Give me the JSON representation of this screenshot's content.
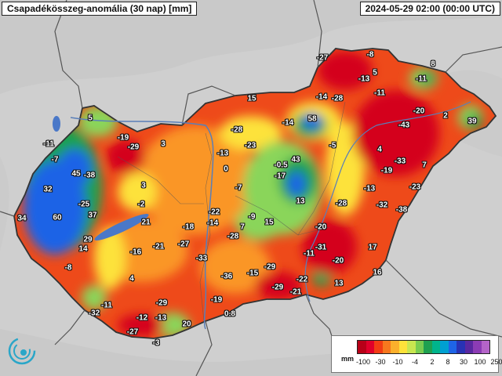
{
  "header": {
    "title": "Csapadékösszeg-anomália (30 nap) [mm]",
    "timestamp": "2024-05-29 02:00 (00:00 UTC)"
  },
  "legend": {
    "unit": "mm",
    "ticks": [
      "-100",
      "-30",
      "-10",
      "-4",
      "2",
      "8",
      "30",
      "100",
      "250"
    ],
    "colors": [
      "#b80018",
      "#e0002a",
      "#f23c14",
      "#f7781e",
      "#fbb02c",
      "#fde23a",
      "#c8e650",
      "#78cc50",
      "#1ea050",
      "#00b48c",
      "#00a0d2",
      "#1e64e6",
      "#2832b4",
      "#5a28a0",
      "#8c3cb4",
      "#b464c8"
    ]
  },
  "map_colors": {
    "background": "#cfcfcf",
    "border": "#555555",
    "strong_deficit": "#d4001e",
    "deficit": "#ee4a1a",
    "moderate_deficit": "#fa9628",
    "slight_deficit": "#fde23a",
    "slight_surplus": "#8ad55a",
    "surplus": "#1ea050",
    "strong_surplus": "#1e64e6"
  },
  "values": [
    "-27",
    "-8",
    "5",
    "-13",
    "8",
    "-11",
    "-14",
    "-28",
    "-11",
    "15",
    "-20",
    "2",
    "39",
    "-14",
    "58",
    "-43",
    "5",
    "-19",
    "-29",
    "3",
    "-28",
    "-23",
    "-11",
    "-7",
    "-13",
    "0",
    "-5",
    "4",
    "-0.5",
    "43",
    "-19",
    "-33",
    "7",
    "-38",
    "45",
    "32",
    "-25",
    "3",
    "-2",
    "-17",
    "13",
    "-7",
    "-13",
    "-23",
    "-28",
    "-32",
    "-38",
    "34",
    "60",
    "37",
    "21",
    "-22",
    "-9",
    "15",
    "-18",
    "-14",
    "7",
    "29",
    "14",
    "-16",
    "-21",
    "-27",
    "-28",
    "-20",
    "-31",
    "-11",
    "17",
    "-8",
    "4",
    "-33",
    "-36",
    "-15",
    "-29",
    "-20",
    "16",
    "-11",
    "-22",
    "-29",
    "-21",
    "13",
    "-29",
    "-19",
    "-32",
    "-12",
    "-13",
    "20",
    "0.8",
    "-27",
    "-3"
  ]
}
